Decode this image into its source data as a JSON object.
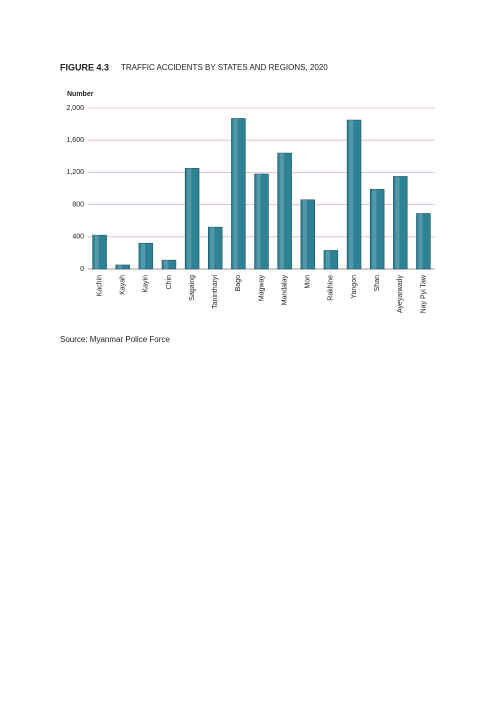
{
  "chart_data": {
    "type": "bar",
    "figure_label": "FIGURE 4.3",
    "title": "TRAFFIC ACCIDENTS BY STATES AND REGIONS, 2020",
    "y_label": "Number",
    "source": "Source: Myanmar Police Force",
    "categories": [
      "Kachin",
      "Kayah",
      "Kayin",
      "Chin",
      "Sagaing",
      "Tanintharyi",
      "Bago",
      "Magway",
      "Mandalay",
      "Mon",
      "Rakhine",
      "Yangon",
      "Shan",
      "Ayeyarwady",
      "Nay Pyi Taw"
    ],
    "values": [
      420,
      50,
      320,
      110,
      1250,
      520,
      1870,
      1180,
      1440,
      860,
      230,
      1850,
      990,
      1150,
      690
    ],
    "color": "#2f8196",
    "grid_color": "#e3b9c4",
    "ylim": [
      0,
      2000
    ],
    "yticks": [
      0,
      400,
      800,
      {
        "value": 1200,
        "label": "1,200"
      },
      {
        "value": 1600,
        "label": "1,600"
      },
      {
        "value": 2000,
        "label": "2,000"
      }
    ],
    "grid": true
  }
}
